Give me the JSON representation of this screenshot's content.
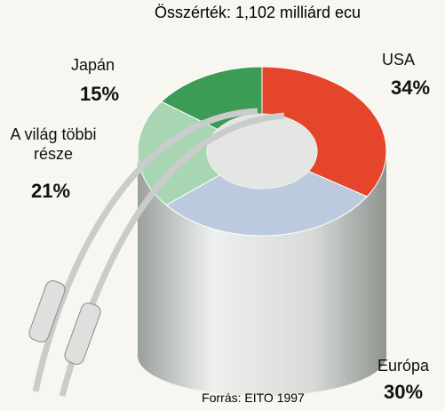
{
  "chart_data": {
    "type": "pie",
    "title": "Összérték: 1,102 milliárd ecu",
    "categories": [
      "USA",
      "Európa",
      "A világ többi része",
      "Japán"
    ],
    "values": [
      34,
      30,
      21,
      15
    ],
    "value_labels": [
      "34%",
      "30%",
      "21%",
      "15%"
    ],
    "colors": [
      "#e5452a",
      "#bccae0",
      "#a9d6b2",
      "#3c9b55"
    ],
    "source": "Forrás: EITO 1997"
  }
}
